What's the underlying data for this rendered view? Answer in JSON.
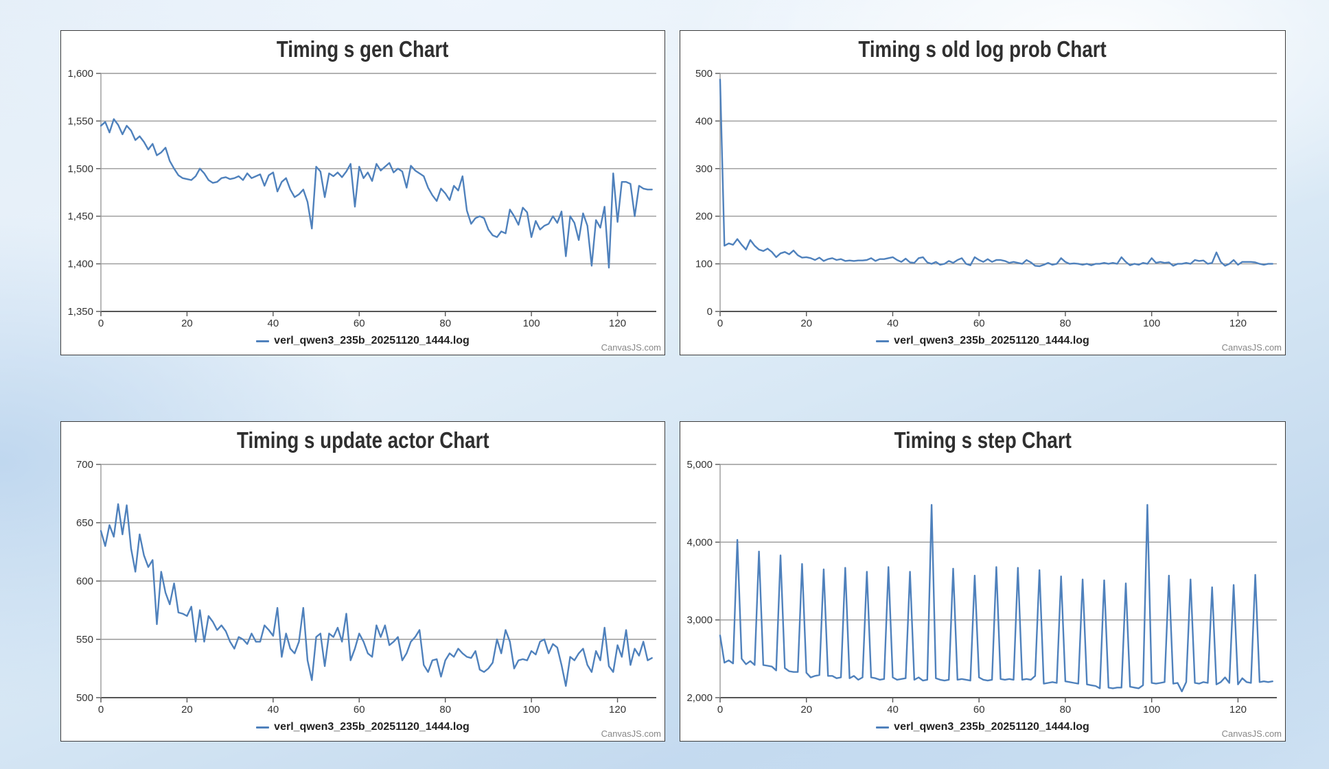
{
  "canvasjs_label": "CanvasJS.com",
  "chart_data": [
    {
      "type": "line",
      "title": "Timing s gen Chart",
      "xlabel": "",
      "ylabel": "",
      "ylim": [
        1350,
        1600
      ],
      "y_tick_step": 50,
      "x_ticks": [
        0,
        20,
        40,
        60,
        80,
        100,
        120
      ],
      "grid": "horizontal",
      "legend_position": "bottom",
      "color": "#4F81BC",
      "series": [
        {
          "name": "verl_qwen3_235b_20251120_1444.log",
          "values": [
            1545,
            1549,
            1538,
            1552,
            1546,
            1536,
            1545,
            1540,
            1530,
            1534,
            1528,
            1520,
            1526,
            1514,
            1517,
            1522,
            1508,
            1500,
            1493,
            1490,
            1489,
            1488,
            1492,
            1500,
            1495,
            1488,
            1485,
            1486,
            1490,
            1491,
            1489,
            1490,
            1492,
            1488,
            1495,
            1490,
            1492,
            1494,
            1482,
            1493,
            1496,
            1476,
            1486,
            1490,
            1478,
            1470,
            1473,
            1478,
            1465,
            1437,
            1502,
            1497,
            1470,
            1495,
            1492,
            1496,
            1491,
            1497,
            1505,
            1460,
            1502,
            1490,
            1496,
            1487,
            1505,
            1498,
            1502,
            1506,
            1496,
            1500,
            1497,
            1480,
            1503,
            1498,
            1495,
            1492,
            1480,
            1472,
            1466,
            1479,
            1474,
            1467,
            1482,
            1477,
            1492,
            1456,
            1442,
            1448,
            1450,
            1448,
            1436,
            1430,
            1428,
            1434,
            1432,
            1457,
            1450,
            1441,
            1459,
            1454,
            1428,
            1445,
            1436,
            1440,
            1442,
            1450,
            1443,
            1455,
            1408,
            1450,
            1443,
            1425,
            1453,
            1440,
            1398,
            1446,
            1438,
            1460,
            1396,
            1495,
            1444,
            1486,
            1486,
            1484,
            1450,
            1482,
            1479,
            1478,
            1478
          ]
        }
      ]
    },
    {
      "type": "line",
      "title": "Timing s old log prob Chart",
      "xlabel": "",
      "ylabel": "",
      "ylim": [
        0,
        500
      ],
      "y_tick_step": 100,
      "x_ticks": [
        0,
        20,
        40,
        60,
        80,
        100,
        120
      ],
      "grid": "horizontal",
      "legend_position": "bottom",
      "color": "#4F81BC",
      "series": [
        {
          "name": "verl_qwen3_235b_20251120_1444.log",
          "values": [
            487,
            138,
            143,
            140,
            152,
            140,
            130,
            150,
            138,
            130,
            127,
            132,
            125,
            114,
            122,
            125,
            120,
            128,
            118,
            113,
            114,
            112,
            108,
            113,
            106,
            110,
            112,
            108,
            110,
            106,
            107,
            106,
            107,
            107,
            108,
            112,
            106,
            110,
            110,
            112,
            114,
            108,
            104,
            111,
            103,
            102,
            112,
            114,
            103,
            100,
            104,
            98,
            100,
            106,
            102,
            108,
            112,
            100,
            97,
            114,
            108,
            104,
            110,
            104,
            108,
            108,
            106,
            102,
            104,
            102,
            100,
            108,
            103,
            96,
            95,
            98,
            102,
            98,
            100,
            112,
            104,
            100,
            101,
            100,
            98,
            100,
            97,
            100,
            100,
            102,
            100,
            102,
            100,
            114,
            104,
            97,
            100,
            98,
            102,
            100,
            112,
            102,
            104,
            102,
            103,
            96,
            100,
            100,
            102,
            100,
            108,
            106,
            107,
            100,
            102,
            124,
            104,
            96,
            100,
            108,
            98,
            104,
            104,
            104,
            103,
            100,
            98,
            100,
            100
          ]
        }
      ]
    },
    {
      "type": "line",
      "title": "Timing s update actor Chart",
      "xlabel": "",
      "ylabel": "",
      "ylim": [
        500,
        700
      ],
      "y_tick_step": 50,
      "x_ticks": [
        0,
        20,
        40,
        60,
        80,
        100,
        120
      ],
      "grid": "horizontal",
      "legend_position": "bottom",
      "color": "#4F81BC",
      "series": [
        {
          "name": "verl_qwen3_235b_20251120_1444.log",
          "values": [
            643,
            630,
            648,
            638,
            666,
            640,
            665,
            628,
            608,
            640,
            622,
            612,
            618,
            563,
            608,
            590,
            580,
            598,
            573,
            572,
            570,
            578,
            548,
            575,
            548,
            570,
            565,
            558,
            562,
            557,
            548,
            542,
            552,
            550,
            546,
            555,
            548,
            548,
            562,
            558,
            553,
            577,
            535,
            555,
            542,
            538,
            548,
            577,
            532,
            515,
            552,
            555,
            527,
            555,
            552,
            560,
            548,
            572,
            532,
            542,
            555,
            548,
            538,
            535,
            562,
            552,
            562,
            545,
            548,
            552,
            532,
            538,
            548,
            552,
            558,
            528,
            522,
            532,
            533,
            518,
            532,
            538,
            535,
            542,
            538,
            535,
            534,
            540,
            524,
            522,
            525,
            530,
            550,
            538,
            558,
            548,
            525,
            532,
            533,
            532,
            540,
            537,
            548,
            550,
            538,
            546,
            543,
            528,
            510,
            535,
            532,
            538,
            542,
            528,
            522,
            540,
            532,
            560,
            527,
            522,
            545,
            535,
            558,
            528,
            542,
            536,
            548,
            532,
            534
          ]
        }
      ]
    },
    {
      "type": "line",
      "title": "Timing s step Chart",
      "xlabel": "",
      "ylabel": "",
      "ylim": [
        2000,
        5000
      ],
      "y_tick_step": 1000,
      "x_ticks": [
        0,
        20,
        40,
        60,
        80,
        100,
        120
      ],
      "grid": "horizontal",
      "legend_position": "bottom",
      "color": "#4F81BC",
      "series": [
        {
          "name": "verl_qwen3_235b_20251120_1444.log",
          "values": [
            2800,
            2450,
            2480,
            2440,
            4030,
            2500,
            2430,
            2470,
            2420,
            3880,
            2420,
            2410,
            2400,
            2350,
            3830,
            2380,
            2340,
            2330,
            2330,
            3720,
            2320,
            2260,
            2280,
            2290,
            3650,
            2280,
            2280,
            2250,
            2260,
            3670,
            2250,
            2280,
            2230,
            2260,
            3620,
            2260,
            2250,
            2230,
            2240,
            3680,
            2260,
            2230,
            2240,
            2250,
            3620,
            2230,
            2260,
            2220,
            2230,
            4480,
            2250,
            2230,
            2220,
            2230,
            3660,
            2230,
            2240,
            2230,
            2220,
            3570,
            2260,
            2230,
            2220,
            2230,
            3680,
            2240,
            2230,
            2240,
            2230,
            3670,
            2230,
            2240,
            2230,
            2280,
            3640,
            2180,
            2190,
            2200,
            2190,
            3560,
            2210,
            2200,
            2190,
            2180,
            3520,
            2170,
            2160,
            2150,
            2120,
            3510,
            2130,
            2120,
            2130,
            2130,
            3470,
            2140,
            2130,
            2120,
            2160,
            4480,
            2190,
            2180,
            2190,
            2200,
            3570,
            2180,
            2190,
            2080,
            2200,
            3520,
            2190,
            2180,
            2200,
            2190,
            3420,
            2170,
            2200,
            2260,
            2190,
            3450,
            2170,
            2250,
            2200,
            2190,
            3580,
            2200,
            2210,
            2200,
            2210
          ]
        }
      ]
    }
  ]
}
